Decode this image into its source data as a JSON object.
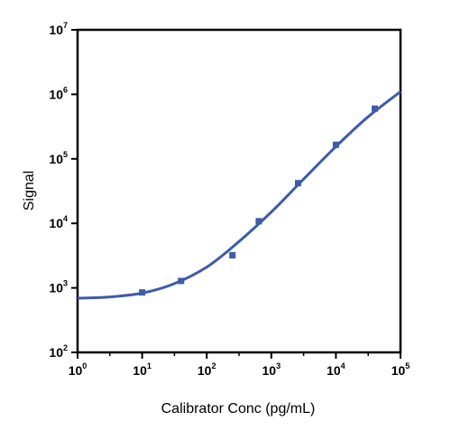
{
  "chart_data": {
    "type": "scatter",
    "title": "",
    "xlabel": "Calibrator Conc (pg/mL)",
    "ylabel": "Signal",
    "x_scale": "log10",
    "y_scale": "log10",
    "xlim": [
      1,
      100000
    ],
    "ylim": [
      100,
      10000000
    ],
    "x_ticks": [
      {
        "value": 1,
        "base": "10",
        "exp": "0"
      },
      {
        "value": 10,
        "base": "10",
        "exp": "1"
      },
      {
        "value": 100,
        "base": "10",
        "exp": "2"
      },
      {
        "value": 1000,
        "base": "10",
        "exp": "3"
      },
      {
        "value": 10000,
        "base": "10",
        "exp": "4"
      },
      {
        "value": 100000,
        "base": "10",
        "exp": "5"
      }
    ],
    "y_ticks": [
      {
        "value": 100,
        "base": "10",
        "exp": "2"
      },
      {
        "value": 1000,
        "base": "10",
        "exp": "3"
      },
      {
        "value": 10000,
        "base": "10",
        "exp": "4"
      },
      {
        "value": 100000,
        "base": "10",
        "exp": "5"
      },
      {
        "value": 1000000,
        "base": "10",
        "exp": "6"
      },
      {
        "value": 10000000,
        "base": "10",
        "exp": "7"
      }
    ],
    "grid": false,
    "legend": "none",
    "series": [
      {
        "kind": "points",
        "marker": "square",
        "color": "#3f5ba9",
        "x": [
          10,
          40,
          250,
          640,
          2600,
          10000,
          40000
        ],
        "y": [
          850,
          1280,
          3200,
          10800,
          42000,
          165000,
          600000
        ]
      },
      {
        "kind": "fitted-curve",
        "color": "#3f5ba9",
        "x": [
          1,
          3,
          10,
          30,
          100,
          300,
          1000,
          3000,
          10000,
          30000,
          100000
        ],
        "y": [
          690,
          720,
          830,
          1140,
          2100,
          5000,
          15000,
          46000,
          155000,
          430000,
          1100000
        ]
      }
    ]
  }
}
